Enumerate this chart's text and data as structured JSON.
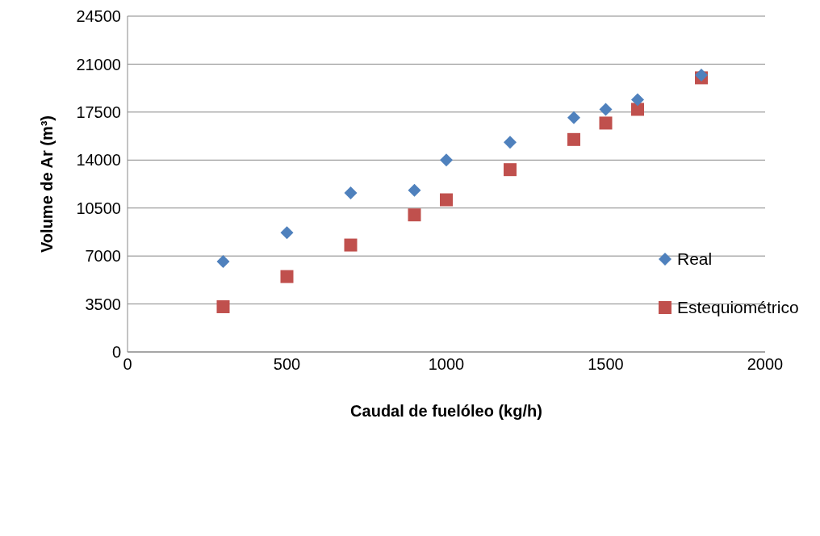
{
  "chart_data": {
    "type": "scatter",
    "xlabel": "Caudal de fuelóleo (kg/h)",
    "ylabel": "Volume de Ar (m³)",
    "xlim": [
      0,
      2000
    ],
    "xticks": [
      0,
      500,
      1000,
      1500,
      2000
    ],
    "ylim": [
      0,
      24500
    ],
    "yticks": [
      0,
      3500,
      7000,
      10500,
      14000,
      17500,
      21000,
      24500
    ],
    "grid": "y",
    "legend": "right",
    "x": [
      300,
      500,
      700,
      900,
      1000,
      1200,
      1400,
      1500,
      1600,
      1800
    ],
    "series": [
      {
        "name": "Real",
        "color": "#4f81bd",
        "marker": "diamond",
        "values": [
          6600,
          8700,
          11600,
          11800,
          14000,
          15300,
          17100,
          17700,
          18400,
          20200
        ]
      },
      {
        "name": "Estequiométrico",
        "color": "#c0504d",
        "marker": "square",
        "values": [
          3300,
          5500,
          7800,
          10000,
          11100,
          13300,
          15500,
          16700,
          17700,
          20000
        ]
      }
    ]
  }
}
